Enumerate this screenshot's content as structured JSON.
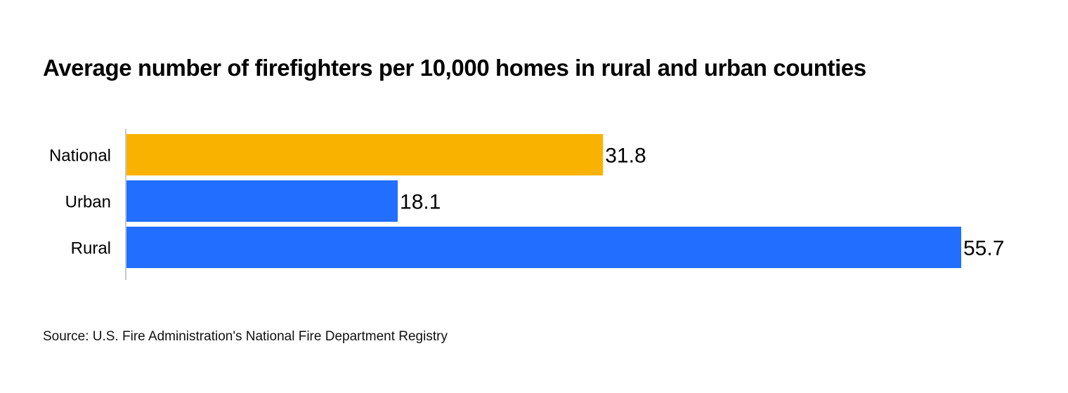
{
  "chart_data": {
    "type": "bar",
    "orientation": "horizontal",
    "title": "Average number of firefighters per 10,000 homes in rural and urban counties",
    "categories": [
      "National",
      "Urban",
      "Rural"
    ],
    "values": [
      31.8,
      18.1,
      55.7
    ],
    "value_labels": [
      "31.8",
      "18.1",
      "55.7"
    ],
    "colors": [
      "#F9B200",
      "#216EFF",
      "#216EFF"
    ],
    "xlim": [
      0,
      55.7
    ],
    "grid": false,
    "legend": "none",
    "axis_color": "#c8c8c8"
  },
  "source": "Source: U.S. Fire Administration's National Fire Department Registry"
}
